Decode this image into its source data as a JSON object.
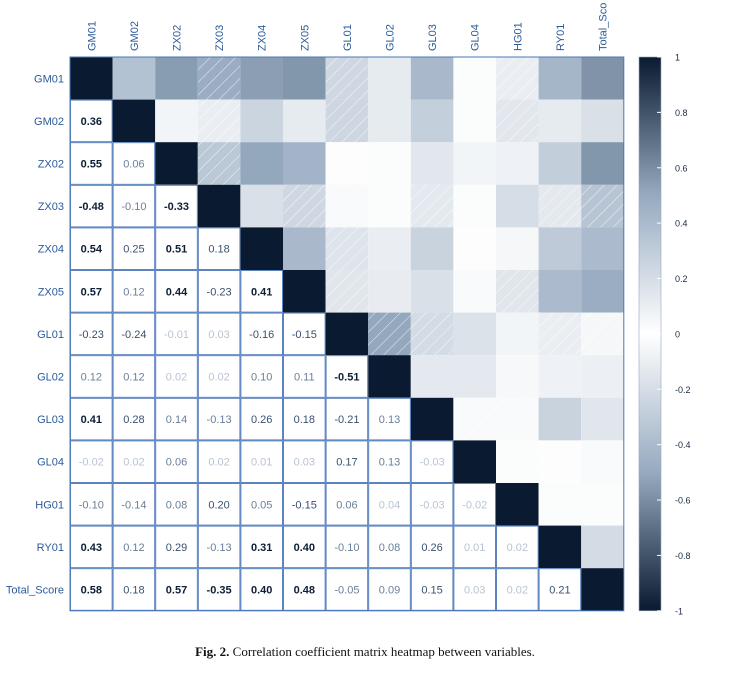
{
  "caption": {
    "label": "Fig. 2.",
    "text": "Correlation coefficient matrix heatmap between variables."
  },
  "colors": {
    "strong_negative": "#0a1a30",
    "zero": "#ffffff",
    "strong_positive": "#0a1a30",
    "grid": "#4a78b8",
    "label_text": "#2a5a9a",
    "hatch": "#ffffff"
  },
  "chart_data": {
    "type": "heatmap",
    "title": "",
    "variables": [
      "GM01",
      "GM02",
      "ZX02",
      "ZX03",
      "ZX04",
      "ZX05",
      "GL01",
      "GL02",
      "GL03",
      "GL04",
      "HG01",
      "RY01",
      "Total_Score"
    ],
    "column_labels": [
      "GM01",
      "GM02",
      "ZX02",
      "ZX03",
      "ZX04",
      "ZX05",
      "GL01",
      "GL02",
      "GL03",
      "GL04",
      "HG01",
      "RY01",
      "Total_Sco"
    ],
    "lower_triangle_labels": [
      [],
      [
        "0.36"
      ],
      [
        "0.55",
        "0.06"
      ],
      [
        "-0.48",
        "-0.10",
        "-0.33"
      ],
      [
        "0.54",
        "0.25",
        "0.51",
        "0.18"
      ],
      [
        "0.57",
        "0.12",
        "0.44",
        "-0.23",
        "0.41"
      ],
      [
        "-0.23",
        "-0.24",
        "-0.01",
        "0.03",
        "-0.16",
        "-0.15"
      ],
      [
        "0.12",
        "0.12",
        "0.02",
        "0.02",
        "0.10",
        "0.11",
        "-0.51"
      ],
      [
        "0.41",
        "0.28",
        "0.14",
        "-0.13",
        "0.26",
        "0.18",
        "-0.21",
        "0.13"
      ],
      [
        "-0.02",
        "0.02",
        "0.06",
        "0.02",
        "0.01",
        "0.03",
        "0.17",
        "0.13",
        "-0.03"
      ],
      [
        "-0.10",
        "-0.14",
        "0.08",
        "0.20",
        "0.05",
        "-0.15",
        "0.06",
        "0.04",
        "-0.03",
        "-0.02"
      ],
      [
        "0.43",
        "0.12",
        "0.29",
        "-0.13",
        "0.31",
        "0.40",
        "-0.10",
        "0.08",
        "0.26",
        "0.01",
        "0.02"
      ],
      [
        "0.58",
        "0.18",
        "0.57",
        "-0.35",
        "0.40",
        "0.48",
        "-0.05",
        "0.09",
        "0.15",
        "0.03",
        "0.02",
        "0.21"
      ]
    ],
    "matrix": [
      [
        1.0,
        0.36,
        0.55,
        -0.48,
        0.54,
        0.57,
        -0.23,
        0.12,
        0.41,
        -0.02,
        -0.1,
        0.43,
        0.58
      ],
      [
        0.36,
        1.0,
        0.06,
        -0.1,
        0.25,
        0.12,
        -0.24,
        0.12,
        0.28,
        0.02,
        -0.14,
        0.12,
        0.18
      ],
      [
        0.55,
        0.06,
        1.0,
        -0.33,
        0.51,
        0.44,
        -0.01,
        0.02,
        0.14,
        0.06,
        0.08,
        0.29,
        0.57
      ],
      [
        -0.48,
        -0.1,
        -0.33,
        1.0,
        0.18,
        -0.23,
        0.03,
        0.02,
        -0.13,
        0.02,
        0.2,
        -0.13,
        -0.35
      ],
      [
        0.54,
        0.25,
        0.51,
        0.18,
        1.0,
        0.41,
        -0.16,
        0.1,
        0.26,
        0.01,
        0.05,
        0.31,
        0.4
      ],
      [
        0.57,
        0.12,
        0.44,
        -0.23,
        0.41,
        1.0,
        -0.15,
        0.11,
        0.18,
        0.03,
        -0.15,
        0.4,
        0.48
      ],
      [
        -0.23,
        -0.24,
        -0.01,
        0.03,
        -0.16,
        -0.15,
        1.0,
        -0.51,
        -0.21,
        0.17,
        0.06,
        -0.1,
        -0.05
      ],
      [
        0.12,
        0.12,
        0.02,
        0.02,
        0.1,
        0.11,
        -0.51,
        1.0,
        0.13,
        0.13,
        0.04,
        0.08,
        0.09
      ],
      [
        0.41,
        0.28,
        0.14,
        -0.13,
        0.26,
        0.18,
        -0.21,
        0.13,
        1.0,
        -0.03,
        -0.03,
        0.26,
        0.15
      ],
      [
        -0.02,
        0.02,
        0.06,
        0.02,
        0.01,
        0.03,
        0.17,
        0.13,
        -0.03,
        1.0,
        -0.02,
        0.01,
        0.03
      ],
      [
        -0.1,
        -0.14,
        0.08,
        0.2,
        0.05,
        -0.15,
        0.06,
        0.04,
        -0.03,
        -0.02,
        1.0,
        0.02,
        0.02
      ],
      [
        0.43,
        0.12,
        0.29,
        -0.13,
        0.31,
        0.4,
        -0.1,
        0.08,
        0.26,
        0.01,
        0.02,
        1.0,
        0.21
      ],
      [
        0.58,
        0.18,
        0.57,
        -0.35,
        0.4,
        0.48,
        -0.05,
        0.09,
        0.15,
        0.03,
        0.02,
        0.21,
        1.0
      ]
    ],
    "lower_triangle": "coefficient labels",
    "upper_triangle": "colored cells, negative values hatched",
    "colorbar": {
      "range": [
        -1,
        1
      ],
      "tick_labels": [
        "1",
        "0.8",
        "0.6",
        "0.4",
        "0.2",
        "0",
        "-0.2",
        "-0.4",
        "-0.6",
        "-0.8",
        "-1"
      ],
      "position": "right"
    }
  }
}
